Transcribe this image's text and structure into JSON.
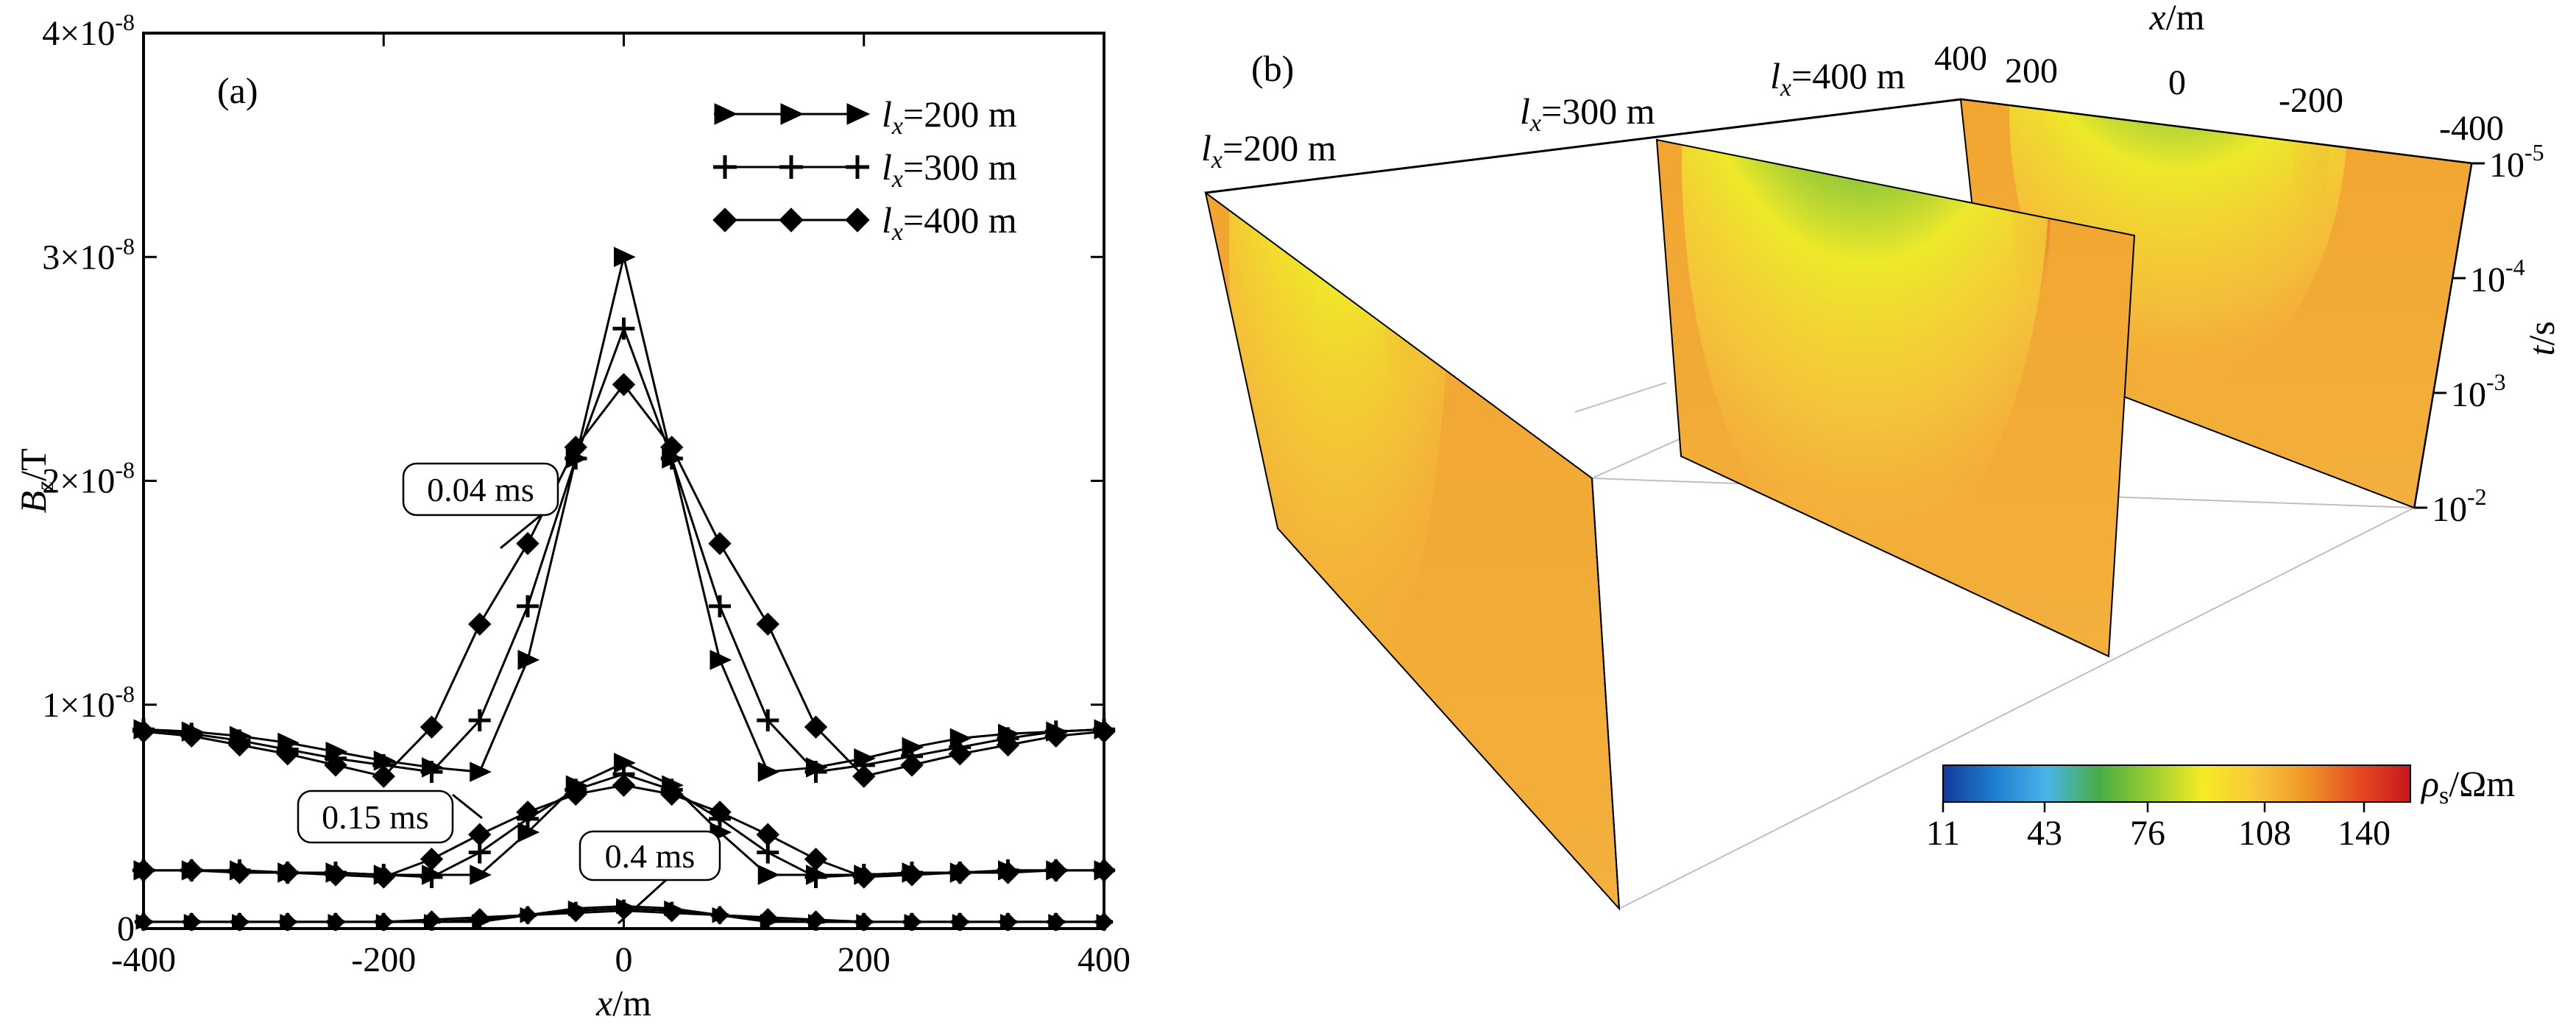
{
  "chart_data": [
    {
      "panel_label": "(a)",
      "type": "line",
      "xlabel": "x/m",
      "ylabel": "Bz/T",
      "xlim": [
        -400,
        400
      ],
      "ylim": [
        0,
        4e-08
      ],
      "x_ticks": [
        -400,
        -200,
        0,
        200,
        400
      ],
      "y_ticks": [
        {
          "value": 0,
          "mant": "0",
          "exp": ""
        },
        {
          "value": 1e-08,
          "mant": "1×10",
          "exp": "-8"
        },
        {
          "value": 2e-08,
          "mant": "2×10",
          "exp": "-8"
        },
        {
          "value": 3e-08,
          "mant": "3×10",
          "exp": "-8"
        },
        {
          "value": 4e-08,
          "mant": "4×10",
          "exp": "-8"
        }
      ],
      "x": [
        -400,
        -360,
        -320,
        -280,
        -240,
        -200,
        -160,
        -120,
        -80,
        -40,
        0,
        40,
        80,
        120,
        160,
        200,
        240,
        280,
        320,
        360,
        400
      ],
      "legend": [
        {
          "name": "lx=200 m",
          "sym": "l",
          "sub": "x",
          "rest": "=200 m",
          "marker": "triangle"
        },
        {
          "name": "lx=300 m",
          "sym": "l",
          "sub": "x",
          "rest": "=300 m",
          "marker": "plus"
        },
        {
          "name": "lx=400 m",
          "sym": "l",
          "sub": "x",
          "rest": "=400 m",
          "marker": "diamond"
        }
      ],
      "time_labels": [
        "0.04 ms",
        "0.15 ms",
        "0.4 ms"
      ],
      "groups": [
        {
          "time": "0.04 ms",
          "series": [
            {
              "name": "lx=200 m",
              "marker": "triangle",
              "values": [
                8.9e-09,
                8.8e-09,
                8.6e-09,
                8.3e-09,
                7.9e-09,
                7.5e-09,
                7.2e-09,
                7e-09,
                1.2e-08,
                2.1e-08,
                3e-08,
                2.1e-08,
                1.2e-08,
                7e-09,
                7.2e-09,
                7.6e-09,
                8.1e-09,
                8.5e-09,
                8.7e-09,
                8.8e-09,
                8.9e-09
              ]
            },
            {
              "name": "lx=300 m",
              "marker": "plus",
              "values": [
                8.9e-09,
                8.7e-09,
                8.4e-09,
                8e-09,
                7.6e-09,
                7.3e-09,
                7e-09,
                9.3e-09,
                1.44e-08,
                2.1e-08,
                2.68e-08,
                2.1e-08,
                1.44e-08,
                9.3e-09,
                7e-09,
                7.3e-09,
                7.7e-09,
                8.1e-09,
                8.5e-09,
                8.8e-09,
                8.9e-09
              ]
            },
            {
              "name": "lx=400 m",
              "marker": "diamond",
              "values": [
                8.8e-09,
                8.6e-09,
                8.2e-09,
                7.8e-09,
                7.3e-09,
                6.8e-09,
                9e-09,
                1.36e-08,
                1.72e-08,
                2.15e-08,
                2.43e-08,
                2.15e-08,
                1.72e-08,
                1.36e-08,
                9e-09,
                6.8e-09,
                7.3e-09,
                7.8e-09,
                8.2e-09,
                8.6e-09,
                8.8e-09
              ]
            }
          ]
        },
        {
          "time": "0.15 ms",
          "series": [
            {
              "name": "lx=200 m",
              "marker": "triangle",
              "values": [
                2.6e-09,
                2.6e-09,
                2.6e-09,
                2.5e-09,
                2.5e-09,
                2.4e-09,
                2.4e-09,
                2.4e-09,
                4.3e-09,
                6.4e-09,
                7.4e-09,
                6.4e-09,
                4.3e-09,
                2.4e-09,
                2.4e-09,
                2.4e-09,
                2.5e-09,
                2.5e-09,
                2.6e-09,
                2.6e-09,
                2.6e-09
              ]
            },
            {
              "name": "lx=300 m",
              "marker": "plus",
              "values": [
                2.6e-09,
                2.6e-09,
                2.6e-09,
                2.5e-09,
                2.5e-09,
                2.4e-09,
                2.3e-09,
                3.4e-09,
                4.9e-09,
                6.2e-09,
                6.9e-09,
                6.2e-09,
                4.9e-09,
                3.4e-09,
                2.3e-09,
                2.4e-09,
                2.5e-09,
                2.5e-09,
                2.6e-09,
                2.6e-09,
                2.6e-09
              ]
            },
            {
              "name": "lx=400 m",
              "marker": "diamond",
              "values": [
                2.6e-09,
                2.6e-09,
                2.5e-09,
                2.5e-09,
                2.4e-09,
                2.3e-09,
                3.1e-09,
                4.2e-09,
                5.2e-09,
                6e-09,
                6.4e-09,
                6e-09,
                5.2e-09,
                4.2e-09,
                3.1e-09,
                2.3e-09,
                2.4e-09,
                2.5e-09,
                2.5e-09,
                2.6e-09,
                2.6e-09
              ]
            }
          ]
        },
        {
          "time": "0.4 ms",
          "series": [
            {
              "name": "lx=200 m",
              "marker": "triangle",
              "values": [
                3e-10,
                3e-10,
                3e-10,
                3e-10,
                3e-10,
                3e-10,
                3e-10,
                3e-10,
                6e-10,
                9e-10,
                1e-09,
                9e-10,
                6e-10,
                3e-10,
                3e-10,
                3e-10,
                3e-10,
                3e-10,
                3e-10,
                3e-10,
                3e-10
              ]
            },
            {
              "name": "lx=300 m",
              "marker": "plus",
              "values": [
                3e-10,
                3e-10,
                3e-10,
                3e-10,
                3e-10,
                3e-10,
                3e-10,
                4e-10,
                6e-10,
                8e-10,
                9e-10,
                8e-10,
                6e-10,
                4e-10,
                3e-10,
                3e-10,
                3e-10,
                3e-10,
                3e-10,
                3e-10,
                3e-10
              ]
            },
            {
              "name": "lx=400 m",
              "marker": "diamond",
              "values": [
                3e-10,
                3e-10,
                3e-10,
                3e-10,
                3e-10,
                3e-10,
                4e-10,
                5e-10,
                6e-10,
                7e-10,
                8e-10,
                7e-10,
                6e-10,
                5e-10,
                4e-10,
                3e-10,
                3e-10,
                3e-10,
                3e-10,
                3e-10,
                3e-10
              ]
            }
          ]
        }
      ]
    },
    {
      "panel_label": "(b)",
      "type": "heatmap",
      "xlabel": "x/m",
      "tlabel": "t/s",
      "x_ticks": [
        "400",
        "200",
        "0",
        "-200",
        "-400"
      ],
      "t_ticks": [
        {
          "mant": "10",
          "exp": "-5"
        },
        {
          "mant": "10",
          "exp": "-4"
        },
        {
          "mant": "10",
          "exp": "-3"
        },
        {
          "mant": "10",
          "exp": "-2"
        }
      ],
      "slices": [
        {
          "sym": "l",
          "sub": "x",
          "rest": "=200 m",
          "name": "lx=200 m"
        },
        {
          "sym": "l",
          "sub": "x",
          "rest": "=300 m",
          "name": "lx=300 m"
        },
        {
          "sym": "l",
          "sub": "x",
          "rest": "=400 m",
          "name": "lx=400 m"
        }
      ],
      "colorbar": {
        "label_sym": "ρ",
        "label_sub": "s",
        "label_rest": "/Ωm",
        "label": "ρs/Ωm",
        "ticks": [
          "11",
          "43",
          "76",
          "108",
          "140"
        ],
        "colors": [
          "#123a9c",
          "#1e7fd0",
          "#4ab4e8",
          "#48ad45",
          "#9acd32",
          "#f5ec24",
          "#f8c83a",
          "#f0962a",
          "#e54a22",
          "#c8161e"
        ]
      }
    }
  ]
}
